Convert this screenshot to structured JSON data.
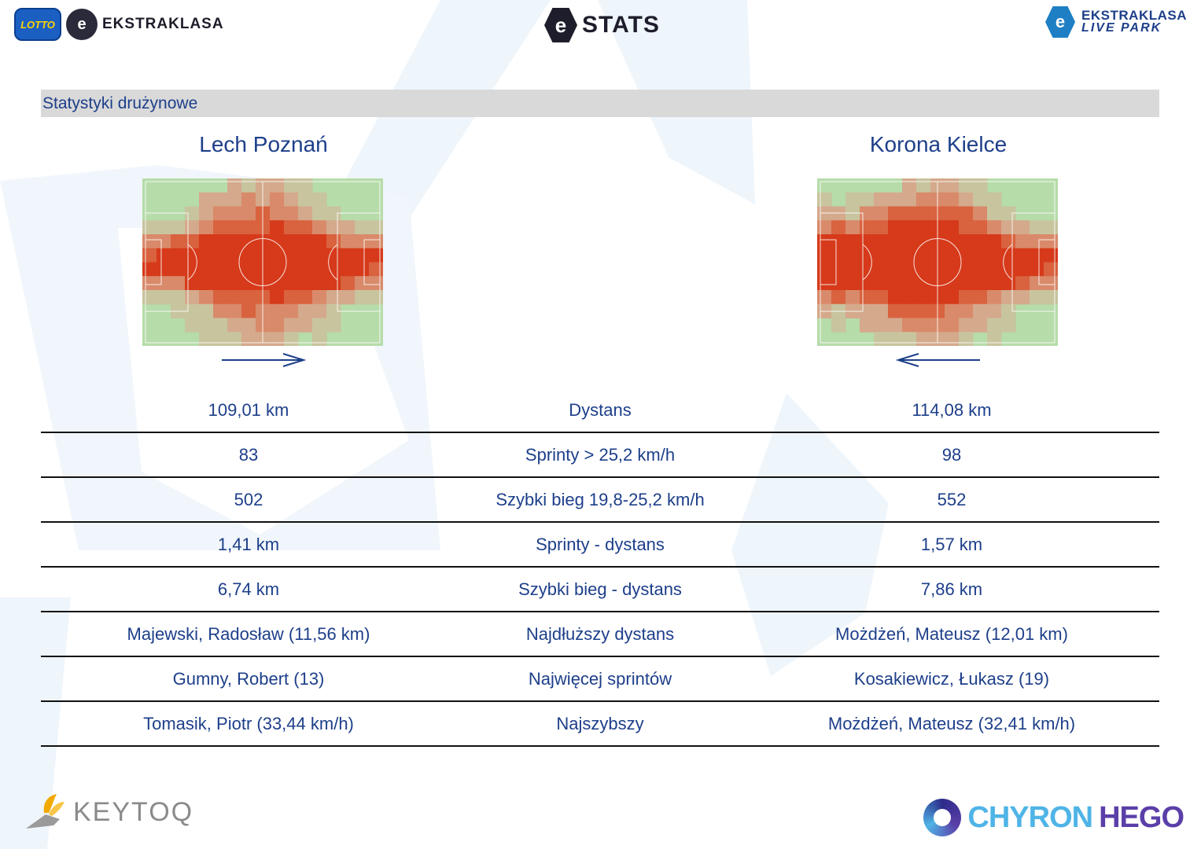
{
  "header": {
    "left_logo": {
      "lotto": "LOTTO",
      "league": "EKSTRAKLASA"
    },
    "center_logo": "STATS",
    "right_logo": {
      "line1": "EKSTRAKLASA",
      "line2": "LIVE PARK"
    }
  },
  "section_title": "Statystyki drużynowe",
  "teams": {
    "home": {
      "name": "Lech Poznań",
      "direction": "right"
    },
    "away": {
      "name": "Korona Kielce",
      "direction": "left"
    }
  },
  "stats": [
    {
      "home": "109,01 km",
      "label": "Dystans",
      "away": "114,08 km"
    },
    {
      "home": "83",
      "label": "Sprinty > 25,2 km/h",
      "away": "98"
    },
    {
      "home": "502",
      "label": "Szybki bieg 19,8-25,2 km/h",
      "away": "552"
    },
    {
      "home": "1,41 km",
      "label": "Sprinty - dystans",
      "away": "1,57 km"
    },
    {
      "home": "6,74 km",
      "label": "Szybki bieg - dystans",
      "away": "7,86 km"
    },
    {
      "home": "Majewski, Radosław (11,56 km)",
      "label": "Najdłuższy dystans",
      "away": "Możdżeń, Mateusz (12,01 km)"
    },
    {
      "home": "Gumny, Robert (13)",
      "label": "Najwięcej sprintów",
      "away": "Kosakiewicz, Łukasz (19)"
    },
    {
      "home": "Tomasik, Piotr (33,44 km/h)",
      "label": "Najszybszy",
      "away": "Możdżeń, Mateusz (32,41 km/h)"
    }
  ],
  "footer": {
    "left_brand": "KEYTOQ",
    "right_brand_part1": "CHYRON",
    "right_brand_part2": "HEGO"
  },
  "colors": {
    "text_blue": "#1d3f8a",
    "heat_high": "#d63a1a",
    "pitch_green": "#a8d8a0",
    "bar_grey": "#d9d9d9"
  }
}
